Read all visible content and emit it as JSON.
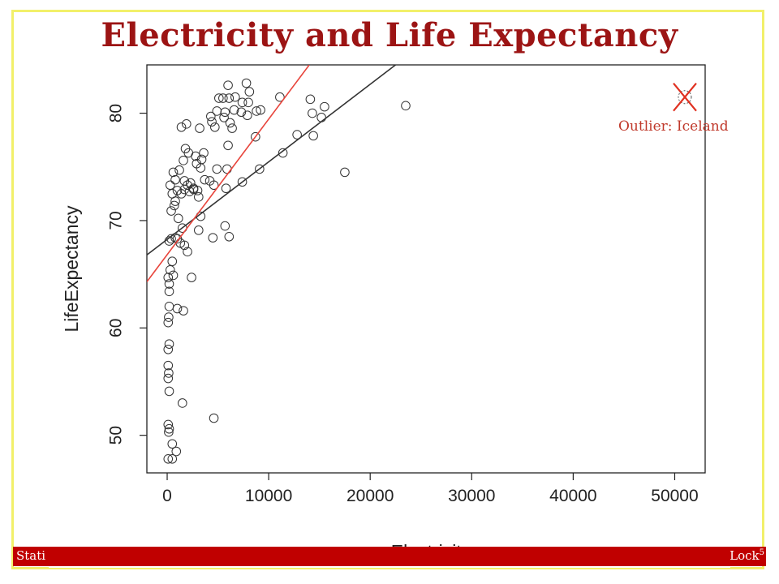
{
  "slide": {
    "title": "Electricity and Life Expectancy",
    "footer_left": "Stati",
    "footer_right": "Lock",
    "footer_right_sup": "5",
    "colors": {
      "title": "#9c1414",
      "footer_bar": "#c00000",
      "frame": "#f2f06a",
      "red_line": "#e8453c",
      "black_line": "#333333"
    }
  },
  "annotation": {
    "label": "Outlier: Iceland",
    "marker_icon": "x-mark-icon"
  },
  "chart_data": {
    "type": "scatter",
    "xlabel": "Electricity",
    "ylabel": "LifeExpectancy",
    "xlim": [
      -2000,
      53000
    ],
    "ylim": [
      46.5,
      84.5
    ],
    "xticks": [
      0,
      10000,
      20000,
      30000,
      40000,
      50000
    ],
    "yticks": [
      50,
      60,
      70,
      80
    ],
    "grid": false,
    "lines": [
      {
        "name": "",
        "color": "#333333",
        "x": [
          -2000,
          22500
        ],
        "y": [
          66.8,
          84.5
        ]
      },
      {
        "name": "",
        "color": "#e8453c",
        "x": [
          -2000,
          14000
        ],
        "y": [
          64.3,
          84.5
        ]
      }
    ],
    "outlier": {
      "x": 51000,
      "y": 81.5
    },
    "points": [
      [
        6000,
        82.6
      ],
      [
        7800,
        82.8
      ],
      [
        8100,
        82
      ],
      [
        5100,
        81.4
      ],
      [
        5500,
        81.4
      ],
      [
        6100,
        81.4
      ],
      [
        6700,
        81.5
      ],
      [
        7400,
        81
      ],
      [
        8000,
        81
      ],
      [
        4900,
        80.2
      ],
      [
        5700,
        80.1
      ],
      [
        6600,
        80.3
      ],
      [
        7300,
        80.1
      ],
      [
        7900,
        79.8
      ],
      [
        8800,
        80.2
      ],
      [
        9200,
        80.3
      ],
      [
        11100,
        81.5
      ],
      [
        14100,
        81.3
      ],
      [
        14300,
        80
      ],
      [
        15200,
        79.6
      ],
      [
        15500,
        80.6
      ],
      [
        23500,
        80.7
      ],
      [
        4300,
        79.7
      ],
      [
        5600,
        79.6
      ],
      [
        6200,
        79.1
      ],
      [
        6400,
        78.6
      ],
      [
        4700,
        78.7
      ],
      [
        4400,
        79.2
      ],
      [
        3200,
        78.6
      ],
      [
        1400,
        78.7
      ],
      [
        1900,
        79
      ],
      [
        8700,
        77.8
      ],
      [
        12800,
        78
      ],
      [
        14400,
        77.9
      ],
      [
        6000,
        77
      ],
      [
        11400,
        76.3
      ],
      [
        17500,
        74.5
      ],
      [
        1800,
        76.7
      ],
      [
        2100,
        76.3
      ],
      [
        1600,
        75.6
      ],
      [
        2800,
        76
      ],
      [
        3400,
        75.7
      ],
      [
        3600,
        76.3
      ],
      [
        2900,
        75.3
      ],
      [
        3300,
        74.9
      ],
      [
        4900,
        74.8
      ],
      [
        5900,
        74.8
      ],
      [
        9100,
        74.8
      ],
      [
        1200,
        74.7
      ],
      [
        600,
        74.5
      ],
      [
        800,
        73.8
      ],
      [
        1700,
        73.7
      ],
      [
        2000,
        73.3
      ],
      [
        2300,
        73.5
      ],
      [
        2600,
        73
      ],
      [
        3000,
        72.8
      ],
      [
        3700,
        73.8
      ],
      [
        4200,
        73.7
      ],
      [
        4600,
        73.3
      ],
      [
        5800,
        73
      ],
      [
        7400,
        73.6
      ],
      [
        300,
        73.3
      ],
      [
        500,
        72.5
      ],
      [
        1000,
        72.8
      ],
      [
        1400,
        72.5
      ],
      [
        1700,
        72.9
      ],
      [
        2200,
        72.7
      ],
      [
        2600,
        72.9
      ],
      [
        3100,
        72.2
      ],
      [
        800,
        71.8
      ],
      [
        700,
        71.4
      ],
      [
        400,
        70.9
      ],
      [
        1100,
        70.2
      ],
      [
        3300,
        70.4
      ],
      [
        1500,
        69.3
      ],
      [
        5700,
        69.5
      ],
      [
        3100,
        69.1
      ],
      [
        6100,
        68.5
      ],
      [
        4500,
        68.4
      ],
      [
        200,
        68.1
      ],
      [
        400,
        68.3
      ],
      [
        800,
        68.4
      ],
      [
        1000,
        68.3
      ],
      [
        1300,
        67.9
      ],
      [
        1700,
        67.7
      ],
      [
        2000,
        67.1
      ],
      [
        500,
        66.2
      ],
      [
        300,
        65.4
      ],
      [
        600,
        64.9
      ],
      [
        100,
        64.7
      ],
      [
        2400,
        64.7
      ],
      [
        200,
        64.1
      ],
      [
        200,
        63.4
      ],
      [
        1000,
        61.8
      ],
      [
        1600,
        61.6
      ],
      [
        200,
        62
      ],
      [
        150,
        61
      ],
      [
        100,
        60.5
      ],
      [
        200,
        58.5
      ],
      [
        100,
        58
      ],
      [
        100,
        56.5
      ],
      [
        150,
        55.8
      ],
      [
        100,
        55.3
      ],
      [
        200,
        54.1
      ],
      [
        1500,
        53
      ],
      [
        4600,
        51.6
      ],
      [
        100,
        51
      ],
      [
        200,
        50.6
      ],
      [
        150,
        50.3
      ],
      [
        500,
        49.2
      ],
      [
        900,
        48.5
      ],
      [
        100,
        47.8
      ],
      [
        500,
        47.8
      ]
    ]
  }
}
